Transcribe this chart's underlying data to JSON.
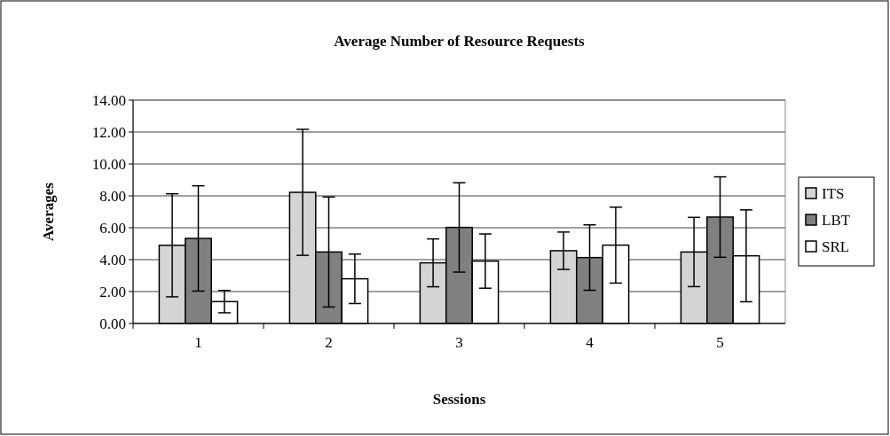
{
  "chart_data": {
    "type": "bar",
    "title": "Average Number of Resource Requests",
    "xlabel": "Sessions",
    "ylabel": "Averages",
    "categories": [
      "1",
      "2",
      "3",
      "4",
      "5"
    ],
    "series": [
      {
        "name": "ITS",
        "color": "#d4d4d4",
        "values": [
          4.9,
          8.22,
          3.8,
          4.56,
          4.48
        ],
        "errors": [
          3.23,
          3.95,
          1.5,
          1.17,
          2.17
        ]
      },
      {
        "name": "LBT",
        "color": "#808080",
        "values": [
          5.33,
          4.48,
          6.02,
          4.13,
          6.67
        ],
        "errors": [
          3.3,
          3.45,
          2.8,
          2.05,
          2.52
        ]
      },
      {
        "name": "SRL",
        "color": "#ffffff",
        "values": [
          1.37,
          2.8,
          3.91,
          4.91,
          4.24
        ],
        "errors": [
          0.7,
          1.55,
          1.7,
          2.38,
          2.88
        ]
      }
    ],
    "ylim": [
      0,
      14
    ],
    "yticks": [
      {
        "value": 0,
        "label": "0.00"
      },
      {
        "value": 2,
        "label": "2.00"
      },
      {
        "value": 4,
        "label": "4.00"
      },
      {
        "value": 6,
        "label": "6.00"
      },
      {
        "value": 8,
        "label": "8.00"
      },
      {
        "value": 10,
        "label": "10.00"
      },
      {
        "value": 12,
        "label": "12.00"
      },
      {
        "value": 14,
        "label": "14.00"
      }
    ],
    "grid": "y",
    "legend": "right"
  }
}
